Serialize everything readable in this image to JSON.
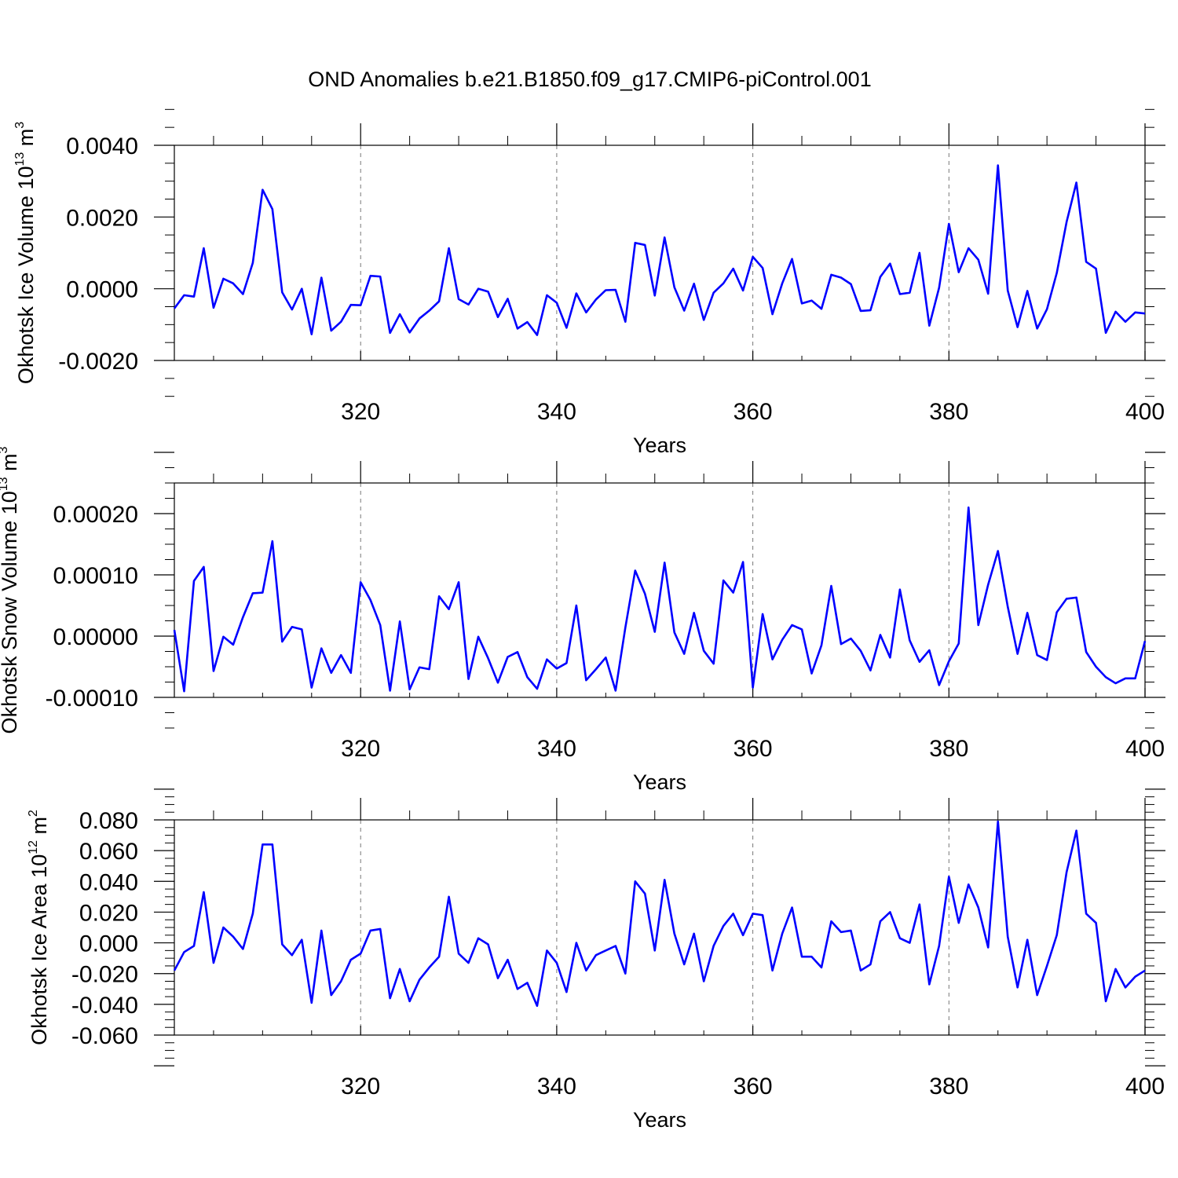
{
  "title": "OND Anomalies b.e21.B1850.f09_g17.CMIP6-piControl.001",
  "chart_data": [
    {
      "type": "line",
      "ylabel": "Okhotsk Ice Volume",
      "ylabel_unit_base": "10",
      "ylabel_unit_exp": "13",
      "ylabel_unit_suffix": "m",
      "ylabel_unit_suffix_exp": "3",
      "xlabel": "Years",
      "xlim": [
        301,
        400
      ],
      "ylim": [
        -0.002,
        0.004
      ],
      "xticks": [
        320,
        340,
        360,
        380,
        400
      ],
      "xtick_labels": [
        "320",
        "340",
        "360",
        "380",
        "400"
      ],
      "yticks": [
        -0.002,
        0.0,
        0.002,
        0.004
      ],
      "ytick_labels": [
        "-0.0020",
        "0.0000",
        "0.0020",
        "0.0040"
      ],
      "grid": "vertical dashed at major x ticks",
      "line_color": "#0000ff",
      "x_start": 301,
      "values": [
        -0.00055,
        -0.00018,
        -0.00022,
        0.00113,
        -0.00053,
        0.00028,
        0.00015,
        -0.00015,
        0.00072,
        0.00276,
        0.00222,
        -0.0001,
        -0.00058,
        0.0,
        -0.00127,
        0.00031,
        -0.00117,
        -0.00092,
        -0.00045,
        -0.00046,
        0.00036,
        0.00034,
        -0.00123,
        -0.00071,
        -0.00122,
        -0.00083,
        -0.00061,
        -0.00035,
        0.00113,
        -0.00029,
        -0.00044,
        0.0,
        -8e-05,
        -0.00079,
        -0.00028,
        -0.00111,
        -0.00093,
        -0.00129,
        -0.00018,
        -0.00039,
        -0.00109,
        -0.00013,
        -0.00066,
        -0.0003,
        -4e-05,
        -3e-05,
        -0.00092,
        0.00128,
        0.00122,
        -0.00019,
        0.00143,
        4e-05,
        -0.00061,
        0.00014,
        -0.00087,
        -0.00011,
        0.00015,
        0.00056,
        -5e-05,
        0.00089,
        0.00058,
        -0.00071,
        0.00015,
        0.00083,
        -0.00041,
        -0.00033,
        -0.00056,
        0.00039,
        0.00031,
        0.00013,
        -0.00062,
        -0.0006,
        0.00033,
        0.0007,
        -0.00015,
        -0.00011,
        0.001,
        -0.00103,
        3e-05,
        0.00181,
        0.00046,
        0.00113,
        0.00081,
        -0.00014,
        0.00344,
        -5e-05,
        -0.00107,
        -6e-05,
        -0.00111,
        -0.00057,
        0.00044,
        0.00186,
        0.00296,
        0.00075,
        0.00056,
        -0.00123,
        -0.00064,
        -0.00092,
        -0.00066,
        -0.00069
      ]
    },
    {
      "type": "line",
      "ylabel": "Okhotsk Snow Volume",
      "ylabel_unit_base": "10",
      "ylabel_unit_exp": "13",
      "ylabel_unit_suffix": "m",
      "ylabel_unit_suffix_exp": "3",
      "xlabel": "Years",
      "xlim": [
        301,
        400
      ],
      "ylim": [
        -0.0001,
        0.00025
      ],
      "xticks": [
        320,
        340,
        360,
        380,
        400
      ],
      "xtick_labels": [
        "320",
        "340",
        "360",
        "380",
        "400"
      ],
      "yticks": [
        -0.0001,
        0.0,
        0.0001,
        0.0002
      ],
      "ytick_labels": [
        "-0.00010",
        "0.00000",
        "0.00010",
        "0.00020"
      ],
      "grid": "vertical dashed at major x ticks",
      "line_color": "#0000ff",
      "x_start": 301,
      "values": [
        1e-05,
        -9e-05,
        9e-05,
        0.000113,
        -5.7e-05,
        -1e-06,
        -1.4e-05,
        3.1e-05,
        7e-05,
        7.1e-05,
        0.000155,
        -9e-06,
        1.5e-05,
        1.1e-05,
        -8.4e-05,
        -2e-05,
        -6e-05,
        -3.1e-05,
        -6e-05,
        8.8e-05,
        5.9e-05,
        1.8e-05,
        -8.9e-05,
        2.4e-05,
        -8.7e-05,
        -5.1e-05,
        -5.4e-05,
        6.5e-05,
        4.4e-05,
        8.8e-05,
        -7e-05,
        -1e-06,
        -3.6e-05,
        -7.6e-05,
        -3.4e-05,
        -2.6e-05,
        -6.7e-05,
        -8.6e-05,
        -3.8e-05,
        -5.3e-05,
        -4.4e-05,
        5e-05,
        -7.2e-05,
        -5.4e-05,
        -3.5e-05,
        -8.9e-05,
        1.4e-05,
        0.000107,
        6.9e-05,
        7e-06,
        0.00012,
        6e-06,
        -2.9e-05,
        3.8e-05,
        -2.4e-05,
        -4.5e-05,
        9.1e-05,
        7.1e-05,
        0.000121,
        -8.4e-05,
        3.6e-05,
        -3.8e-05,
        -6e-06,
        1.8e-05,
        1.1e-05,
        -6.1e-05,
        -1.5e-05,
        8.2e-05,
        -1.3e-05,
        -4e-06,
        -2.4e-05,
        -5.6e-05,
        2e-06,
        -3.5e-05,
        7.6e-05,
        -7e-06,
        -4.2e-05,
        -2.3e-05,
        -8e-05,
        -4.1e-05,
        -1.2e-05,
        0.00021,
        1.8e-05,
        8.4e-05,
        0.000139,
        4.8e-05,
        -2.9e-05,
        3.8e-05,
        -3.1e-05,
        -3.9e-05,
        3.9e-05,
        6.1e-05,
        6.3e-05,
        -2.6e-05,
        -5e-05,
        -6.7e-05,
        -7.7e-05,
        -6.9e-05,
        -6.9e-05,
        -8e-06
      ]
    },
    {
      "type": "line",
      "ylabel": "Okhotsk Ice Area",
      "ylabel_unit_base": "10",
      "ylabel_unit_exp": "12",
      "ylabel_unit_suffix": "m",
      "ylabel_unit_suffix_exp": "2",
      "xlabel": "Years",
      "xlim": [
        301,
        400
      ],
      "ylim": [
        -0.06,
        0.08
      ],
      "xticks": [
        320,
        340,
        360,
        380,
        400
      ],
      "xtick_labels": [
        "320",
        "340",
        "360",
        "380",
        "400"
      ],
      "yticks": [
        -0.06,
        -0.04,
        -0.02,
        0.0,
        0.02,
        0.04,
        0.06,
        0.08
      ],
      "ytick_labels": [
        "-0.060",
        "-0.040",
        "-0.020",
        "0.000",
        "0.020",
        "0.040",
        "0.060",
        "0.080"
      ],
      "grid": "vertical dashed at major x ticks",
      "line_color": "#0000ff",
      "x_start": 301,
      "values": [
        -0.018,
        -0.006,
        -0.002,
        0.033,
        -0.013,
        0.01,
        0.004,
        -0.004,
        0.019,
        0.064,
        0.064,
        -0.001,
        -0.008,
        0.002,
        -0.039,
        0.008,
        -0.034,
        -0.025,
        -0.011,
        -0.007,
        0.008,
        0.009,
        -0.036,
        -0.017,
        -0.038,
        -0.024,
        -0.016,
        -0.009,
        0.03,
        -0.007,
        -0.013,
        0.003,
        -0.001,
        -0.023,
        -0.011,
        -0.03,
        -0.026,
        -0.041,
        -0.005,
        -0.013,
        -0.032,
        0.0,
        -0.018,
        -0.008,
        -0.005,
        -0.002,
        -0.02,
        0.04,
        0.032,
        -0.005,
        0.041,
        0.006,
        -0.014,
        0.006,
        -0.025,
        -0.002,
        0.011,
        0.019,
        0.005,
        0.019,
        0.018,
        -0.018,
        0.006,
        0.023,
        -0.009,
        -0.009,
        -0.016,
        0.014,
        0.007,
        0.008,
        -0.018,
        -0.014,
        0.014,
        0.02,
        0.003,
        0.0,
        0.025,
        -0.027,
        -0.002,
        0.043,
        0.013,
        0.038,
        0.023,
        -0.003,
        0.079,
        0.004,
        -0.029,
        0.002,
        -0.034,
        -0.015,
        0.005,
        0.046,
        0.073,
        0.019,
        0.013,
        -0.038,
        -0.017,
        -0.029,
        -0.022,
        -0.018
      ]
    }
  ]
}
